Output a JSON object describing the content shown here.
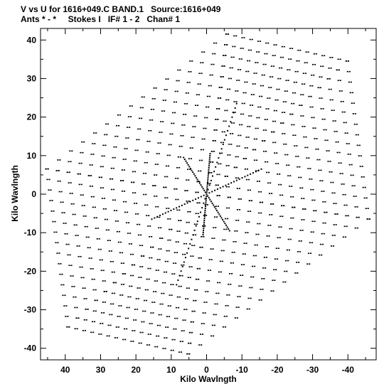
{
  "header": {
    "line1": "V vs U for 1616+049.C BAND.1   Source:1616+049",
    "line2": "Ants * - *     Stokes I   IF# 1 - 2   Chan# 1"
  },
  "chart_data": {
    "type": "scatter",
    "title": "V vs U for 1616+049.C BAND.1   Source:1616+049",
    "subtitle": "Ants * - *     Stokes I   IF# 1 - 2   Chan# 1",
    "xlabel": "Kilo Wavlngth",
    "ylabel": "Kilo Wavlngth",
    "xlim": [
      47,
      -48
    ],
    "ylim": [
      -43,
      43
    ],
    "x_ticks": [
      40,
      30,
      20,
      10,
      0,
      -10,
      -20,
      -30,
      -40
    ],
    "y_ticks": [
      -40,
      -30,
      -20,
      -10,
      0,
      10,
      20,
      30,
      40
    ],
    "grid": false,
    "marker_color": "#000000",
    "arms": [
      {
        "name": "north",
        "end": [
          -5.5,
          41.5
        ]
      },
      {
        "name": "upper-right",
        "end": [
          -39.5,
          34.5
        ]
      },
      {
        "name": "lower-right",
        "end": [
          -45.5,
          -6.5
        ]
      },
      {
        "name": "south",
        "end": [
          5.5,
          -41.5
        ]
      },
      {
        "name": "lower-left",
        "end": [
          39.5,
          -34.5
        ]
      },
      {
        "name": "upper-left",
        "end": [
          45.5,
          6.5
        ]
      }
    ],
    "radial_steps": 15,
    "dense_spokes": [
      {
        "from": [
          6.5,
          9.5
        ],
        "to": [
          -6.5,
          -9.5
        ]
      },
      {
        "from": [
          -8.5,
          23.5
        ],
        "to": [
          8.5,
          -23.5
        ]
      },
      {
        "from": [
          -15.5,
          6.5
        ],
        "to": [
          15.5,
          -6.5
        ]
      },
      {
        "from": [
          -1,
          10.5
        ],
        "to": [
          1,
          -10.5
        ]
      }
    ]
  }
}
